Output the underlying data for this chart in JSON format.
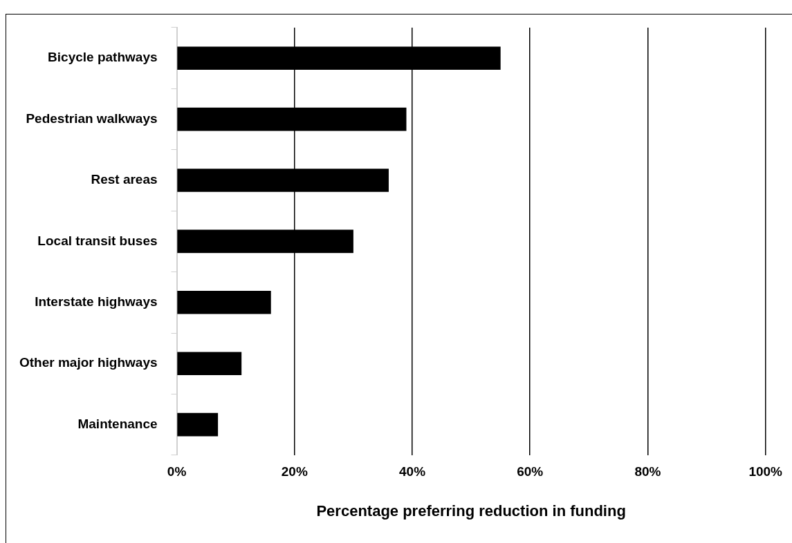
{
  "chart_data": {
    "type": "bar",
    "orientation": "horizontal",
    "xlabel": "Percentage preferring reduction in funding",
    "categories": [
      "Bicycle pathways",
      "Pedestrian walkways",
      "Rest areas",
      "Local transit buses",
      "Interstate highways",
      "Other major highways",
      "Maintenance"
    ],
    "values": [
      55,
      39,
      36,
      30,
      16,
      11,
      7
    ],
    "color": "#000000",
    "xlim": [
      0,
      100
    ],
    "xticks": [
      {
        "value": 0,
        "label": "0%"
      },
      {
        "value": 20,
        "label": "20%"
      },
      {
        "value": 40,
        "label": "40%"
      },
      {
        "value": 60,
        "label": "60%"
      },
      {
        "value": 80,
        "label": "80%"
      },
      {
        "value": 100,
        "label": "100%"
      }
    ],
    "grid": "x",
    "legend": false
  }
}
